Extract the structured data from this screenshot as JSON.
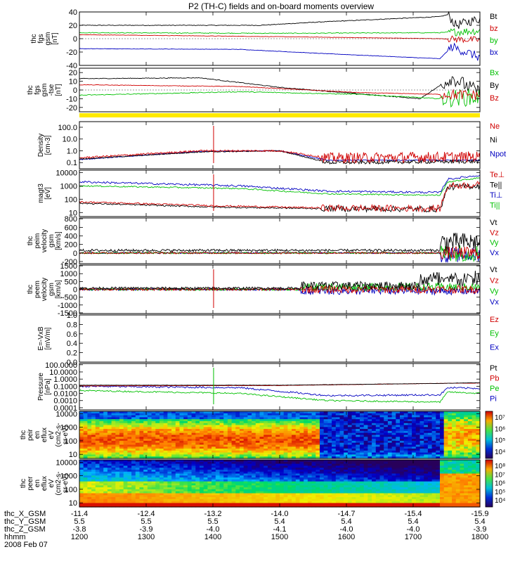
{
  "title": "P2 (TH-C) fields and on-board moments overview",
  "date_label": "2008 Feb 07",
  "chart_data": {
    "type": "line",
    "time_axis": {
      "labels": [
        "thc_X_GSM",
        "thc_Y_GSM",
        "thc_Z_GSM",
        "hhmm"
      ],
      "rows": [
        [
          "-11.4",
          "-12.4",
          "-13.2",
          "-14.0",
          "-14.7",
          "-15.4",
          "-15.9"
        ],
        [
          "5.5",
          "5.5",
          "5.5",
          "5.4",
          "5.4",
          "5.4",
          "5.4"
        ],
        [
          "-3.8",
          "-3.9",
          "-4.0",
          "-4.1",
          "-4.0",
          "-4.0",
          "-3.9"
        ],
        [
          "1200",
          "1300",
          "1400",
          "1500",
          "1600",
          "1700",
          "1800"
        ]
      ]
    },
    "panels": [
      {
        "id": "fgs1",
        "ylabel": [
          "thc",
          "fgs",
          "gsm",
          "[nT]"
        ],
        "yticks": [
          "40",
          "20",
          "0",
          "-20",
          "-40"
        ],
        "ylim": [
          -40,
          40
        ],
        "scale": "linear",
        "legend": [
          {
            "name": "Bt",
            "color": "#000000"
          },
          {
            "name": "bz",
            "color": "#d00000"
          },
          {
            "name": "by",
            "color": "#00c000"
          },
          {
            "name": "bx",
            "color": "#0000c0"
          }
        ]
      },
      {
        "id": "fgs2",
        "ylabel": [
          "thc",
          "fgs",
          "gsm",
          "-tse",
          "[nT]"
        ],
        "yticks": [
          "20",
          "10",
          "0",
          "-10",
          "-20"
        ],
        "ylim": [
          -25,
          25
        ],
        "scale": "linear",
        "legend": [
          {
            "name": "Bx",
            "color": "#00c000"
          },
          {
            "name": "By",
            "color": "#000000"
          },
          {
            "name": "Bz",
            "color": "#d00000"
          }
        ]
      },
      {
        "id": "density",
        "ylabel": [
          "Density",
          "[cm-3]"
        ],
        "yticks": [
          "100.0",
          "10.0",
          "1.0",
          "0.1"
        ],
        "ylim": [
          0.03,
          300
        ],
        "scale": "log",
        "legend": [
          {
            "name": "Ne",
            "color": "#d00000"
          },
          {
            "name": "Ni",
            "color": "#000000"
          },
          {
            "name": "Npot",
            "color": "#0000c0"
          }
        ]
      },
      {
        "id": "temp",
        "ylabel": [
          "magt3",
          "[eV]"
        ],
        "yticks": [
          "10000",
          "1000",
          "100",
          "10"
        ],
        "ylim": [
          5,
          15000
        ],
        "scale": "log",
        "legend": [
          {
            "name": "Te⊥",
            "color": "#d00000"
          },
          {
            "name": "Te||",
            "color": "#000000"
          },
          {
            "name": "Ti⊥",
            "color": "#0000c0"
          },
          {
            "name": "Ti||",
            "color": "#00c000"
          }
        ]
      },
      {
        "id": "vi",
        "ylabel": [
          "thc",
          "peim",
          "velocity",
          "gsm",
          "[km/s]"
        ],
        "yticks": [
          "800",
          "600",
          "400",
          "200",
          "0",
          "-200"
        ],
        "ylim": [
          -250,
          820
        ],
        "scale": "linear",
        "legend": [
          {
            "name": "Vt",
            "color": "#000000"
          },
          {
            "name": "Vz",
            "color": "#d00000"
          },
          {
            "name": "Vy",
            "color": "#00c000"
          },
          {
            "name": "Vx",
            "color": "#0000c0"
          }
        ]
      },
      {
        "id": "ve",
        "ylabel": [
          "thc",
          "peem",
          "velocity",
          "gsm",
          "[km/s]"
        ],
        "yticks": [
          "1500",
          "1000",
          "500",
          "0",
          "-500",
          "-1000",
          "-1500"
        ],
        "ylim": [
          -1550,
          1550
        ],
        "scale": "linear",
        "legend": [
          {
            "name": "Vt",
            "color": "#000000"
          },
          {
            "name": "Vz",
            "color": "#d00000"
          },
          {
            "name": "Vy",
            "color": "#00c000"
          },
          {
            "name": "Vx",
            "color": "#0000c0"
          }
        ]
      },
      {
        "id": "efield",
        "ylabel": [
          "E=-VxB",
          "[mV/m]"
        ],
        "yticks": [
          "1.0",
          "0.8",
          "0.6",
          "0.4",
          "0.2",
          "0.0"
        ],
        "ylim": [
          0,
          1
        ],
        "scale": "linear",
        "legend": [
          {
            "name": "Ez",
            "color": "#d00000"
          },
          {
            "name": "Ey",
            "color": "#00c000"
          },
          {
            "name": "Ex",
            "color": "#0000c0"
          }
        ]
      },
      {
        "id": "pressure",
        "ylabel": [
          "Pressure",
          "[nPa]"
        ],
        "yticks": [
          "100.0000",
          "10.0000",
          "1.0000",
          "0.1000",
          "0.0100",
          "0.0010",
          "0.0001"
        ],
        "ylim": [
          5e-05,
          150
        ],
        "scale": "log",
        "legend": [
          {
            "name": "Pt",
            "color": "#000000"
          },
          {
            "name": "Pb",
            "color": "#d00000"
          },
          {
            "name": "Pe",
            "color": "#00c000"
          },
          {
            "name": "Pi",
            "color": "#0000c0"
          }
        ]
      },
      {
        "id": "ion_spec",
        "ylabel": [
          "thc",
          "peir",
          "en",
          "eflux",
          "eV",
          "(cm2-s-",
          "sr-eV)"
        ],
        "yticks": [
          "10000",
          "1000",
          "100",
          "10"
        ],
        "ylim": [
          5,
          15000
        ],
        "scale": "log",
        "colorbar": [
          "10⁷",
          "10⁶",
          "10⁵",
          "10⁴"
        ]
      },
      {
        "id": "elec_spec",
        "ylabel": [
          "thc",
          "peer",
          "en",
          "eflux",
          "eV",
          "(cm2-s-",
          "sr-eV)"
        ],
        "yticks": [
          "10000",
          "1000",
          "100",
          "10"
        ],
        "ylim": [
          5,
          15000
        ],
        "scale": "log",
        "colorbar": [
          "10⁸",
          "10⁷",
          "10⁶",
          "10⁵",
          "10⁴"
        ]
      }
    ],
    "flag_bar_color": "#ffea00",
    "colors": {
      "black": "#000000",
      "red": "#d00000",
      "green": "#00c000",
      "blue": "#0000c0"
    }
  }
}
